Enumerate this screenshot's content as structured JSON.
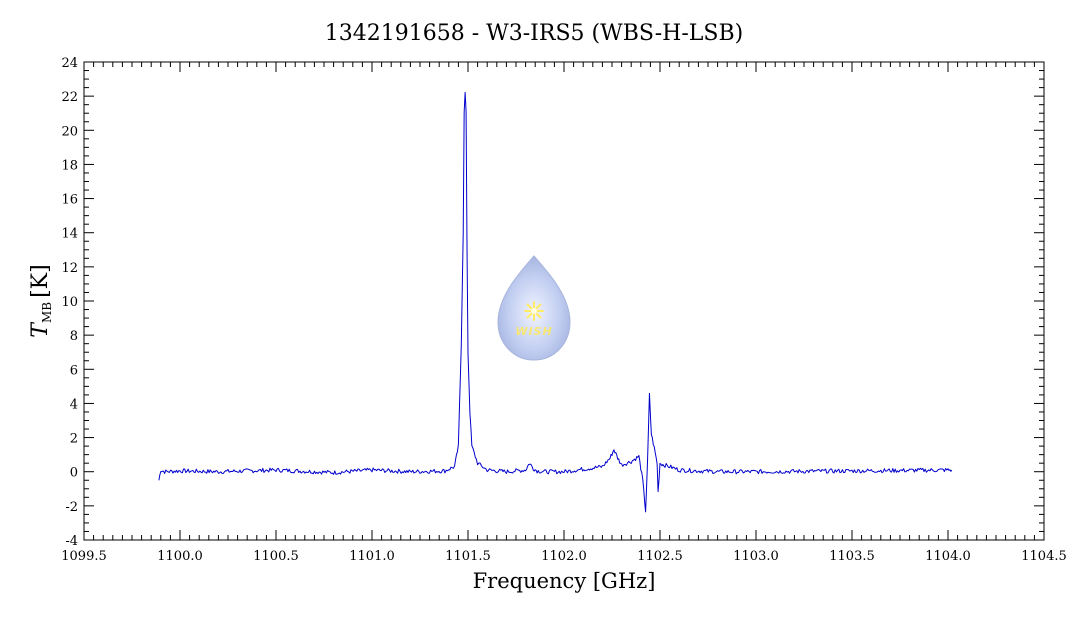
{
  "chart_data": {
    "type": "line",
    "title": "1342191658 - W3-IRS5 (WBS-H-LSB)",
    "xlabel": "Frequency [GHz]",
    "ylabel_symbol": "T",
    "ylabel_subscript": "MB",
    "ylabel_unit": "[K]",
    "xlim": [
      1099.5,
      1104.5
    ],
    "ylim": [
      -4,
      24
    ],
    "x_ticks": [
      "1099.5",
      "1100.0",
      "1100.5",
      "1101.0",
      "1101.5",
      "1102.0",
      "1102.5",
      "1103.0",
      "1103.5",
      "1104.0",
      "1104.5"
    ],
    "y_ticks": [
      "-4",
      "-2",
      "0",
      "2",
      "4",
      "6",
      "8",
      "10",
      "12",
      "14",
      "16",
      "18",
      "20",
      "22",
      "24"
    ],
    "grid": false,
    "line_color": "#0000cc",
    "series": [
      {
        "x": [
          1099.89,
          1099.9,
          1099.92,
          1100.0,
          1100.2,
          1100.5,
          1100.8,
          1101.0,
          1101.2,
          1101.38,
          1101.43,
          1101.45,
          1101.465,
          1101.475,
          1101.48,
          1101.485,
          1101.49,
          1101.495,
          1101.5,
          1101.51,
          1101.52,
          1101.55,
          1101.6,
          1101.7,
          1101.8,
          1101.82,
          1101.84,
          1101.86,
          1101.9,
          1102.0,
          1102.2,
          1102.24,
          1102.26,
          1102.28,
          1102.3,
          1102.35,
          1102.39,
          1102.41,
          1102.425,
          1102.435,
          1102.445,
          1102.455,
          1102.47,
          1102.485,
          1102.49,
          1102.5,
          1102.52,
          1102.55,
          1102.6,
          1102.8,
          1103.0,
          1103.5,
          1104.0,
          1104.02
        ],
        "y": [
          -0.5,
          0.1,
          0.0,
          0.05,
          0.0,
          0.1,
          -0.05,
          0.1,
          0.0,
          0.05,
          0.3,
          1.5,
          7.5,
          14.0,
          21.0,
          22.2,
          21.0,
          13.0,
          7.0,
          3.5,
          1.5,
          0.5,
          0.1,
          0.0,
          0.1,
          0.5,
          0.2,
          0.05,
          0.0,
          0.0,
          0.3,
          0.8,
          1.3,
          0.8,
          0.4,
          0.6,
          0.9,
          -0.5,
          -2.3,
          0.5,
          4.5,
          2.2,
          1.4,
          0.5,
          -1.2,
          0.5,
          0.4,
          0.3,
          0.1,
          0.0,
          0.0,
          0.05,
          0.1,
          0.1
        ]
      }
    ]
  },
  "logo": {
    "text": "WISH"
  }
}
